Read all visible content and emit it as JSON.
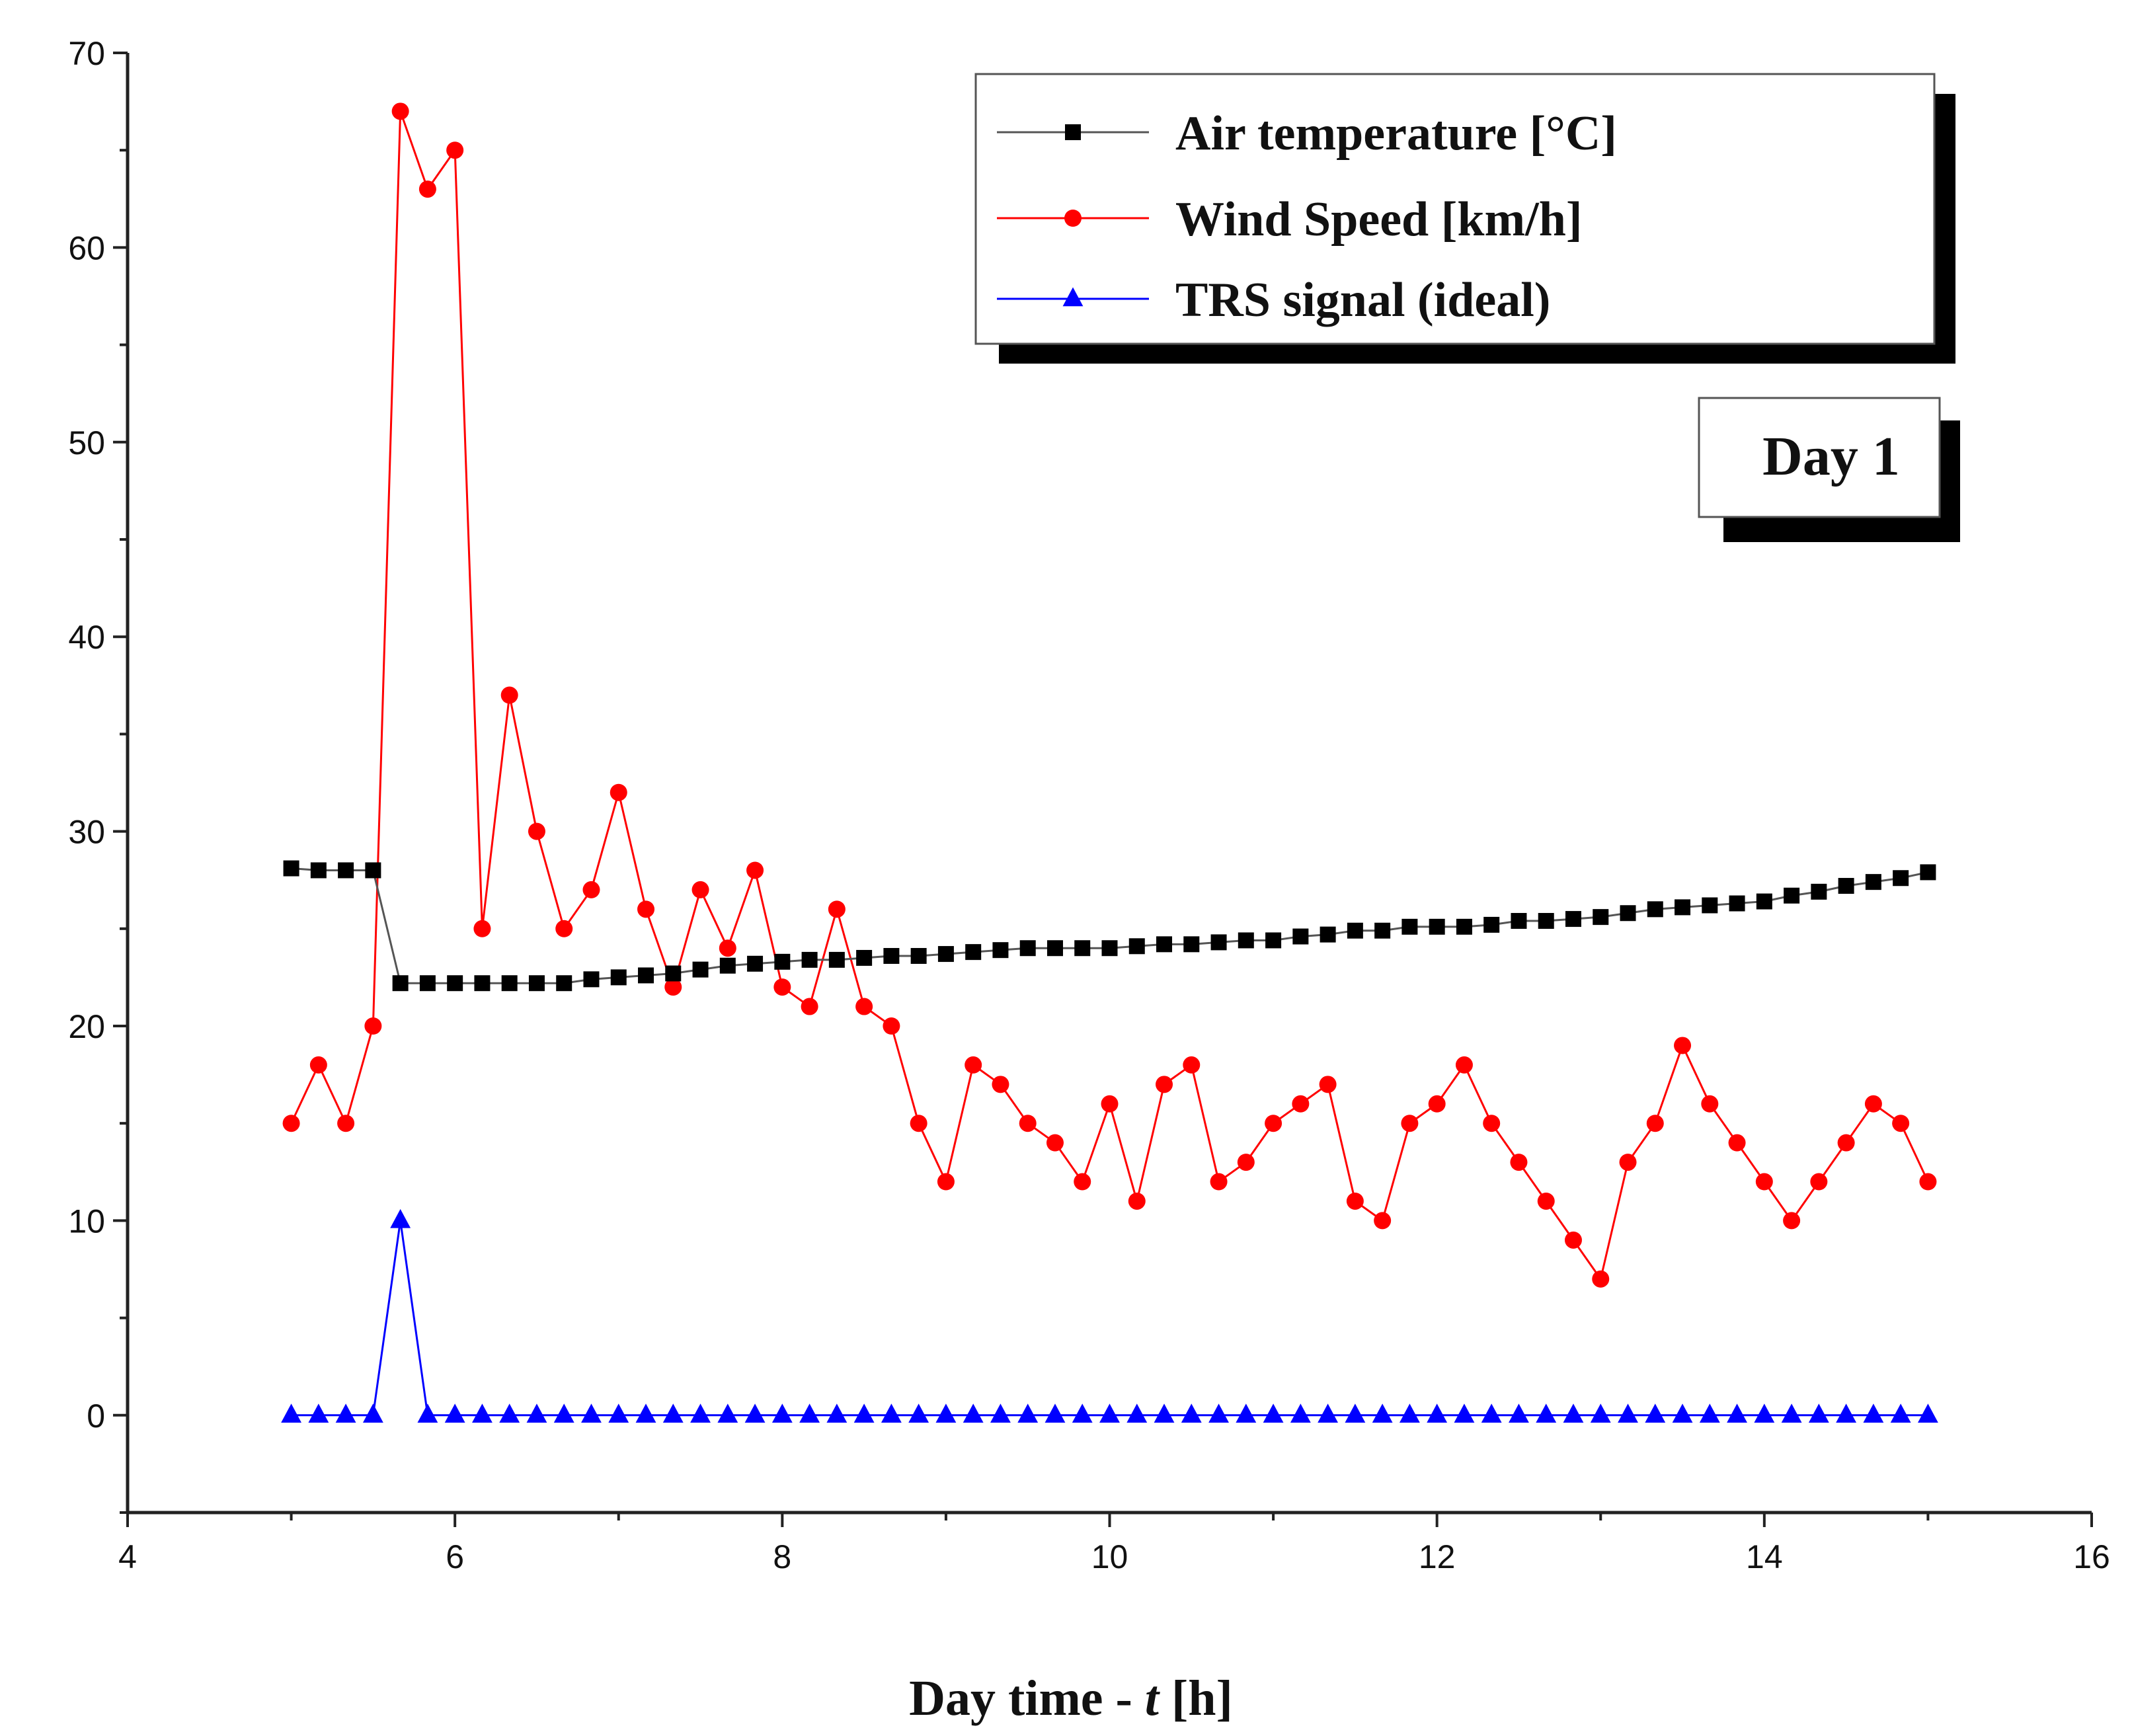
{
  "chart_data": {
    "type": "line",
    "title": "",
    "annotation": "Day 1",
    "xlabel_prefix": "Day time - ",
    "xlabel_var": "t",
    "xlabel_suffix": " [h]",
    "ylabel": "",
    "xlim": [
      4,
      16
    ],
    "ylim": [
      -5,
      70
    ],
    "x_ticks": [
      4,
      6,
      8,
      10,
      12,
      14,
      16
    ],
    "y_ticks": [
      0,
      10,
      20,
      30,
      40,
      50,
      60,
      70
    ],
    "grid": false,
    "legend_position": "top-right",
    "x": [
      5.0,
      5.1667,
      5.3333,
      5.5,
      5.6667,
      5.8333,
      6.0,
      6.1667,
      6.3333,
      6.5,
      6.6667,
      6.8333,
      7.0,
      7.1667,
      7.3333,
      7.5,
      7.6667,
      7.8333,
      8.0,
      8.1667,
      8.3333,
      8.5,
      8.6667,
      8.8333,
      9.0,
      9.1667,
      9.3333,
      9.5,
      9.6667,
      9.8333,
      10.0,
      10.1667,
      10.3333,
      10.5,
      10.6667,
      10.8333,
      11.0,
      11.1667,
      11.3333,
      11.5,
      11.6667,
      11.8333,
      12.0,
      12.1667,
      12.3333,
      12.5,
      12.6667,
      12.8333,
      13.0,
      13.1667,
      13.3333,
      13.5,
      13.6667,
      13.8333,
      14.0,
      14.1667,
      14.3333,
      14.5,
      14.6667,
      14.8333,
      15.0
    ],
    "series": [
      {
        "name": "Air temperature [°C]",
        "color": "#000000",
        "line_color": "#555555",
        "marker": "square",
        "values": [
          28.1,
          28.0,
          28.0,
          28.0,
          22.2,
          22.2,
          22.2,
          22.2,
          22.2,
          22.2,
          22.2,
          22.4,
          22.5,
          22.6,
          22.7,
          22.9,
          23.1,
          23.2,
          23.3,
          23.4,
          23.4,
          23.5,
          23.6,
          23.6,
          23.7,
          23.8,
          23.9,
          24.0,
          24.0,
          24.0,
          24.0,
          24.1,
          24.2,
          24.2,
          24.3,
          24.4,
          24.4,
          24.6,
          24.7,
          24.9,
          24.9,
          25.1,
          25.1,
          25.1,
          25.2,
          25.4,
          25.4,
          25.5,
          25.6,
          25.8,
          26.0,
          26.1,
          26.2,
          26.3,
          26.4,
          26.7,
          26.9,
          27.2,
          27.4,
          27.6,
          27.9
        ]
      },
      {
        "name": "Wind Speed [km/h]",
        "color": "#ff0000",
        "line_color": "#ff0000",
        "marker": "circle",
        "values": [
          15,
          18,
          15,
          20,
          67,
          63,
          65,
          25,
          37,
          30,
          25,
          27,
          32,
          26,
          22,
          27,
          24,
          28,
          22,
          21,
          26,
          21,
          20,
          15,
          12,
          18,
          17,
          15,
          14,
          12,
          16,
          11,
          17,
          18,
          12,
          13,
          15,
          16,
          17,
          11,
          10,
          15,
          16,
          18,
          15,
          13,
          11,
          9,
          7,
          13,
          15,
          19,
          16,
          14,
          12,
          10,
          12,
          14,
          16,
          15,
          12
        ]
      },
      {
        "name": "TRS signal (ideal)",
        "color": "#0000ff",
        "line_color": "#0000ff",
        "marker": "triangle",
        "values": [
          0,
          0,
          0,
          0,
          10,
          0,
          0,
          0,
          0,
          0,
          0,
          0,
          0,
          0,
          0,
          0,
          0,
          0,
          0,
          0,
          0,
          0,
          0,
          0,
          0,
          0,
          0,
          0,
          0,
          0,
          0,
          0,
          0,
          0,
          0,
          0,
          0,
          0,
          0,
          0,
          0,
          0,
          0,
          0,
          0,
          0,
          0,
          0,
          0,
          0,
          0,
          0,
          0,
          0,
          0,
          0,
          0,
          0,
          0,
          0,
          0
        ]
      }
    ]
  }
}
